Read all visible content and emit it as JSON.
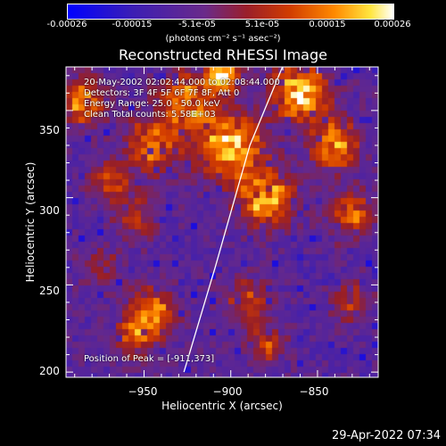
{
  "colorbar": {
    "ticks": [
      "-0.00026",
      "-0.00015",
      "-5.1e-05",
      "5.1e-05",
      "0.00015",
      "0.00026"
    ],
    "units": "(photons cm⁻² s⁻¹ asec⁻²)"
  },
  "plot": {
    "title": "Reconstructed RHESSI Image",
    "info": {
      "time": "20-May-2002 02:02:44.000 to 02:08:44.000",
      "detectors": "Detectors: 3F 4F 5F 6F 7F 8F, Att 0",
      "energy": "Energy Range: 25.0 - 50.0 keV",
      "method": "Clean       Total counts: 5.58E+03",
      "peak": "Position of Peak = [-911,373]"
    },
    "xlabel": "Heliocentric X (arcsec)",
    "ylabel": "Heliocentric Y (arcsec)"
  },
  "footer": {
    "timestamp": "29-Apr-2022 07:34"
  },
  "chart_data": {
    "type": "heatmap",
    "xlim": [
      -995,
      -815
    ],
    "ylim": [
      197,
      375
    ],
    "x_ticks": [
      -950,
      -900,
      -850
    ],
    "y_ticks": [
      200,
      250,
      300,
      350
    ],
    "x_tick_labels": [
      "−950",
      "−900",
      "−850"
    ],
    "y_tick_labels": [
      "200",
      "250",
      "300",
      "350"
    ],
    "colorbar_range": [
      -0.00026,
      0.00026
    ],
    "limb_curve": {
      "x": [
        -927,
        -909,
        -889,
        -866
      ],
      "y": [
        200,
        260,
        330,
        385
      ]
    },
    "peak": {
      "x": -911,
      "y": 373
    },
    "hotspots": [
      {
        "x": -985,
        "y": 355,
        "r": 12,
        "v": 0.75
      },
      {
        "x": -970,
        "y": 310,
        "r": 10,
        "v": 0.6
      },
      {
        "x": -945,
        "y": 330,
        "r": 14,
        "v": 0.7
      },
      {
        "x": -925,
        "y": 355,
        "r": 14,
        "v": 0.8
      },
      {
        "x": -900,
        "y": 330,
        "r": 16,
        "v": 0.9
      },
      {
        "x": -880,
        "y": 300,
        "r": 14,
        "v": 0.85
      },
      {
        "x": -860,
        "y": 360,
        "r": 14,
        "v": 0.9
      },
      {
        "x": -840,
        "y": 330,
        "r": 12,
        "v": 0.8
      },
      {
        "x": -830,
        "y": 290,
        "r": 12,
        "v": 0.7
      },
      {
        "x": -955,
        "y": 290,
        "r": 12,
        "v": 0.55
      },
      {
        "x": -975,
        "y": 260,
        "r": 10,
        "v": 0.5
      },
      {
        "x": -945,
        "y": 235,
        "r": 12,
        "v": 0.75
      },
      {
        "x": -955,
        "y": 220,
        "r": 10,
        "v": 0.65
      },
      {
        "x": -890,
        "y": 240,
        "r": 12,
        "v": 0.6
      },
      {
        "x": -880,
        "y": 215,
        "r": 10,
        "v": 0.6
      },
      {
        "x": -830,
        "y": 240,
        "r": 10,
        "v": 0.55
      },
      {
        "x": -905,
        "y": 370,
        "r": 8,
        "v": 0.95
      }
    ]
  }
}
